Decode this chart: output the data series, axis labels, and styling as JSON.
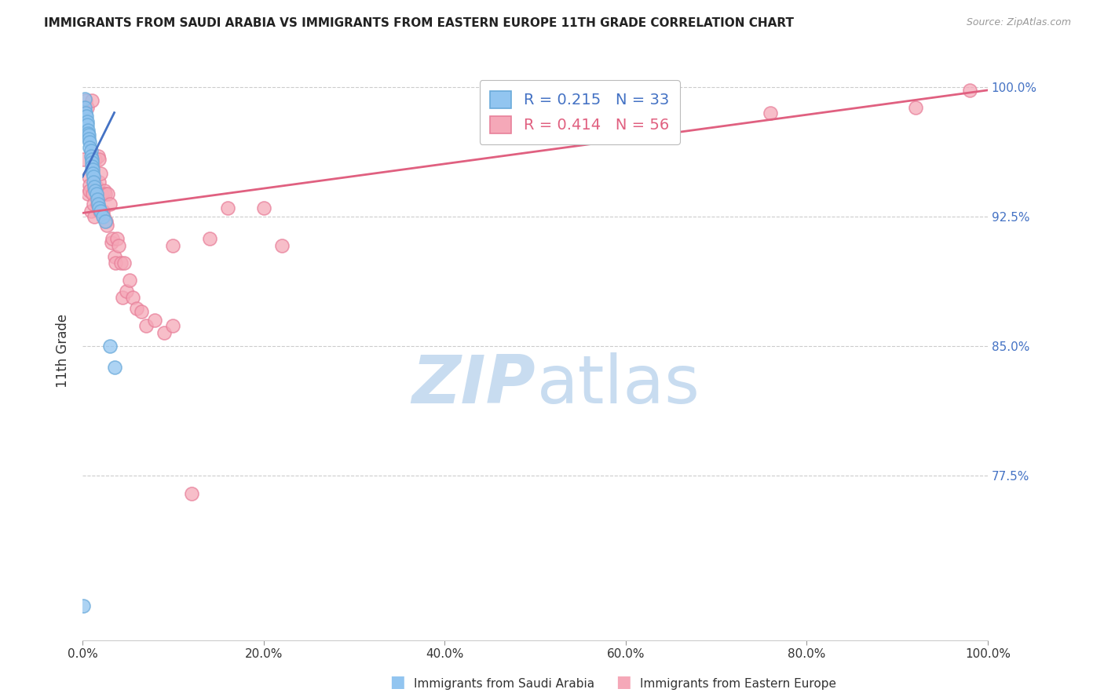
{
  "title": "IMMIGRANTS FROM SAUDI ARABIA VS IMMIGRANTS FROM EASTERN EUROPE 11TH GRADE CORRELATION CHART",
  "source": "Source: ZipAtlas.com",
  "ylabel": "11th Grade",
  "yaxis_labels": [
    "100.0%",
    "92.5%",
    "85.0%",
    "77.5%"
  ],
  "yaxis_values": [
    1.0,
    0.925,
    0.85,
    0.775
  ],
  "xaxis_ticks": [
    0.0,
    0.2,
    0.4,
    0.6,
    0.8,
    1.0
  ],
  "xaxis_labels": [
    "0.0%",
    "20.0%",
    "40.0%",
    "60.0%",
    "80.0%",
    "100.0%"
  ],
  "legend_blue_r": "0.215",
  "legend_blue_n": "33",
  "legend_pink_r": "0.414",
  "legend_pink_n": "56",
  "legend_label_blue": "Immigrants from Saudi Arabia",
  "legend_label_pink": "Immigrants from Eastern Europe",
  "blue_color": "#92C5F0",
  "pink_color": "#F5A8B8",
  "blue_edge_color": "#6AAADA",
  "pink_edge_color": "#E8809A",
  "blue_line_color": "#4472C4",
  "pink_line_color": "#E06080",
  "background_color": "#ffffff",
  "blue_scatter_x": [
    0.002,
    0.002,
    0.003,
    0.004,
    0.005,
    0.005,
    0.006,
    0.006,
    0.007,
    0.007,
    0.008,
    0.008,
    0.009,
    0.009,
    0.01,
    0.01,
    0.01,
    0.011,
    0.011,
    0.012,
    0.012,
    0.013,
    0.014,
    0.015,
    0.016,
    0.017,
    0.018,
    0.02,
    0.022,
    0.025,
    0.03,
    0.035,
    0.001
  ],
  "blue_scatter_y": [
    0.993,
    0.988,
    0.985,
    0.983,
    0.98,
    0.978,
    0.975,
    0.973,
    0.972,
    0.97,
    0.968,
    0.965,
    0.963,
    0.96,
    0.958,
    0.956,
    0.954,
    0.952,
    0.95,
    0.948,
    0.945,
    0.942,
    0.94,
    0.938,
    0.935,
    0.932,
    0.93,
    0.928,
    0.925,
    0.922,
    0.85,
    0.838,
    0.7
  ],
  "pink_scatter_x": [
    0.001,
    0.003,
    0.005,
    0.006,
    0.007,
    0.008,
    0.008,
    0.009,
    0.01,
    0.011,
    0.012,
    0.013,
    0.014,
    0.015,
    0.016,
    0.017,
    0.018,
    0.018,
    0.019,
    0.02,
    0.021,
    0.022,
    0.023,
    0.024,
    0.025,
    0.026,
    0.027,
    0.028,
    0.03,
    0.032,
    0.033,
    0.035,
    0.036,
    0.038,
    0.04,
    0.042,
    0.044,
    0.046,
    0.048,
    0.052,
    0.055,
    0.06,
    0.065,
    0.07,
    0.08,
    0.09,
    0.1,
    0.12,
    0.14,
    0.16,
    0.2,
    0.22,
    0.1,
    0.76,
    0.92,
    0.98
  ],
  "pink_scatter_y": [
    0.958,
    0.992,
    0.988,
    0.938,
    0.948,
    0.943,
    0.94,
    0.928,
    0.992,
    0.938,
    0.932,
    0.925,
    0.958,
    0.942,
    0.932,
    0.96,
    0.958,
    0.945,
    0.928,
    0.95,
    0.938,
    0.928,
    0.925,
    0.94,
    0.938,
    0.922,
    0.92,
    0.938,
    0.932,
    0.91,
    0.912,
    0.902,
    0.898,
    0.912,
    0.908,
    0.898,
    0.878,
    0.898,
    0.882,
    0.888,
    0.878,
    0.872,
    0.87,
    0.862,
    0.865,
    0.858,
    0.862,
    0.765,
    0.912,
    0.93,
    0.93,
    0.908,
    0.908,
    0.985,
    0.988,
    0.998
  ],
  "blue_line_x": [
    0.0,
    0.035
  ],
  "blue_line_y": [
    0.948,
    0.985
  ],
  "pink_line_x": [
    0.0,
    1.0
  ],
  "pink_line_y": [
    0.927,
    0.998
  ],
  "xlim": [
    0.0,
    1.0
  ],
  "ylim": [
    0.68,
    1.015
  ],
  "grid_color": "#CCCCCC",
  "watermark_zip_color": "#C8DCF0",
  "watermark_atlas_color": "#C8DCF0"
}
